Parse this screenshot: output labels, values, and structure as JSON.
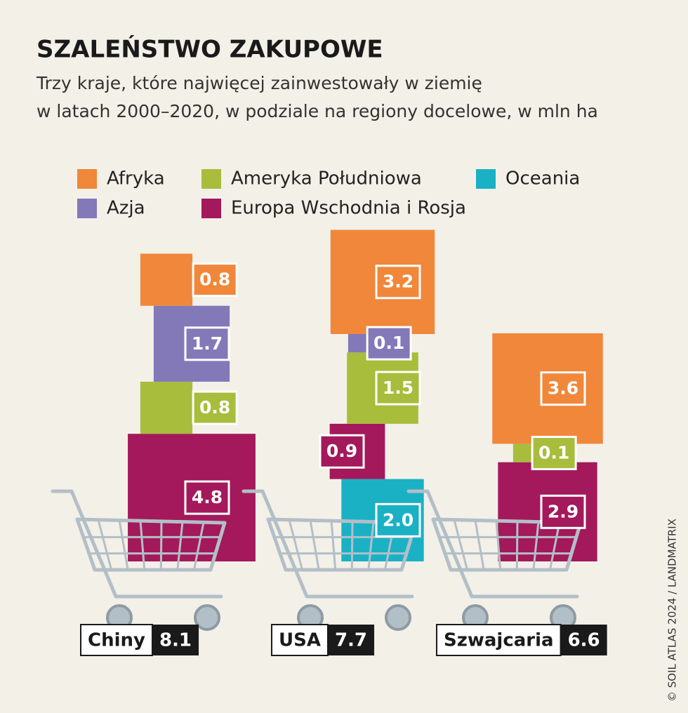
{
  "chart_data": {
    "type": "square-stack",
    "title": "SZALEŃSTWO ZAKUPOWE",
    "subtitle": [
      "Trzy kraje, które najwięcej zainwestowały w ziemię",
      "w latach 2000–2020, w podziale na regiony docelowe, w mln ha"
    ],
    "categories": [
      "Chiny",
      "USA",
      "Szwajcaria"
    ],
    "totals": [
      8.1,
      7.7,
      6.6
    ],
    "series": [
      {
        "name": "Afryka",
        "color": "#f0873a",
        "values": [
          0.8,
          3.2,
          3.6
        ]
      },
      {
        "name": "Azja",
        "color": "#8379b8",
        "values": [
          1.7,
          0.1,
          null
        ]
      },
      {
        "name": "Ameryka Południowa",
        "color": "#a7bd3b",
        "values": [
          0.8,
          1.5,
          0.1
        ]
      },
      {
        "name": "Europa Wschodnia i Rosja",
        "color": "#a3195b",
        "values": [
          4.8,
          0.9,
          2.9
        ]
      },
      {
        "name": "Oceania",
        "color": "#1ab1c5",
        "values": [
          null,
          2.0,
          null
        ],
        "value_labels": [
          null,
          "2.0",
          null
        ]
      }
    ],
    "credit": "© SOIL ATLAS 2024 / LANDMATRIX"
  }
}
